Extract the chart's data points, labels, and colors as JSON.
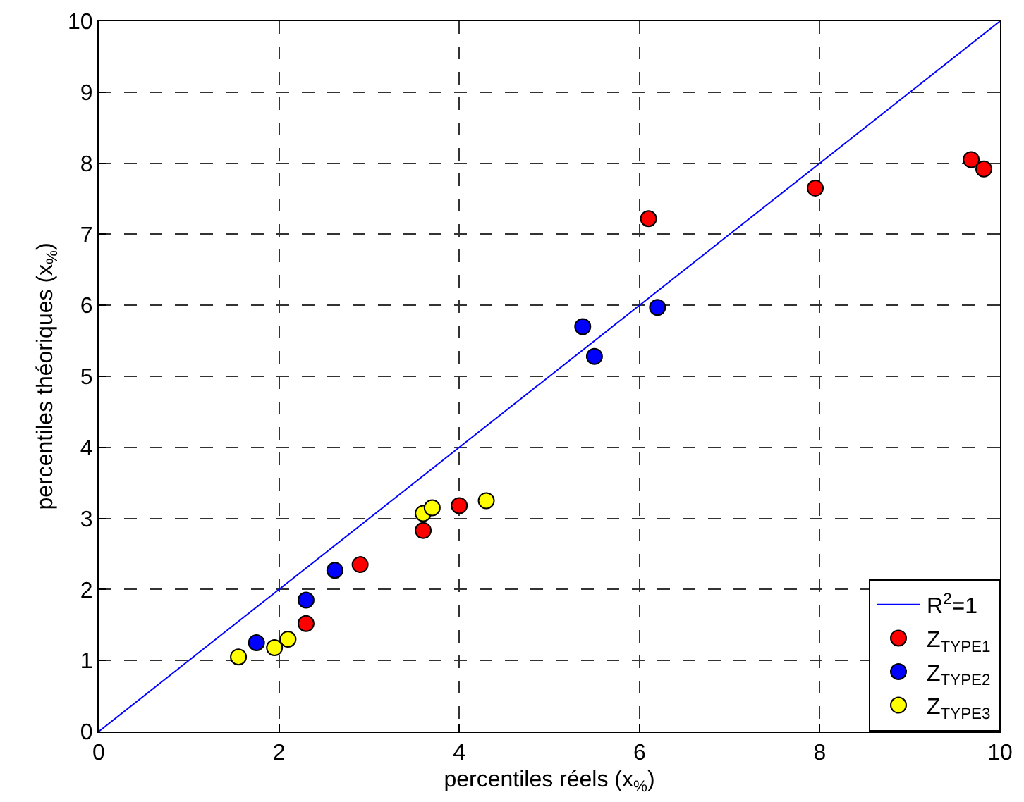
{
  "chart_data": {
    "type": "scatter",
    "xlabel": "percentiles réels (x$_{%}$)",
    "ylabel": "percentiles théoriques (x$_{%}$)",
    "xlim": [
      0,
      10
    ],
    "xticks": [
      0,
      2,
      4,
      6,
      8,
      10
    ],
    "ylim": [
      0,
      10
    ],
    "yticks": [
      0,
      1,
      2,
      3,
      4,
      5,
      6,
      7,
      8,
      9,
      10
    ],
    "grid": true,
    "legend": "bottom right",
    "series": [
      {
        "name": "R$^{2}$=1",
        "type": "line",
        "color": "#0000ff",
        "x": [
          0,
          10
        ],
        "values": [
          0,
          10
        ],
        "line_style": "solid",
        "marker": "none"
      },
      {
        "name": "Z$_{TYPE1}$",
        "color": "#ff0000",
        "marker": "circle",
        "x": [
          2.3,
          2.9,
          3.6,
          4.0,
          6.1,
          7.95,
          9.68,
          9.82
        ],
        "values": [
          1.52,
          2.35,
          2.83,
          3.18,
          7.22,
          7.65,
          8.05,
          7.92
        ]
      },
      {
        "name": "Z$_{TYPE2}$",
        "color": "#0000ff",
        "marker": "circle",
        "x": [
          1.75,
          2.3,
          2.62,
          5.37,
          5.5,
          6.2
        ],
        "values": [
          1.25,
          1.85,
          2.27,
          5.7,
          5.28,
          5.97
        ]
      },
      {
        "name": "Z$_{TYPE3}$",
        "color": "#ffff00",
        "marker": "circle",
        "x": [
          1.55,
          1.95,
          2.1,
          3.6,
          3.7,
          4.3
        ],
        "values": [
          1.05,
          1.18,
          1.3,
          3.07,
          3.15,
          3.25
        ]
      }
    ]
  }
}
